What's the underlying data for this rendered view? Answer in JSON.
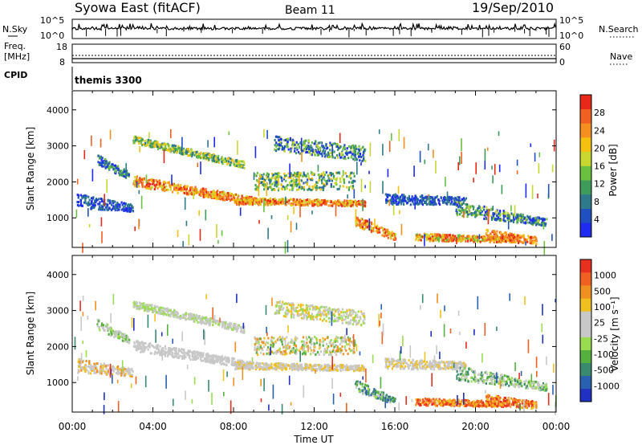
{
  "header": {
    "title": "Syowa East (fitACF)",
    "beam": "Beam 11",
    "date": "19/Sep/2010"
  },
  "top_panels": {
    "nsky_label": "N.Sky",
    "nsky_ticks": [
      "10^5",
      "10^0"
    ],
    "nsearch_label": "N.Search",
    "nsearch_ticks": [
      "10^5",
      "10^0"
    ],
    "freq_label_line1": "Freq.",
    "freq_label_line2": "[MHz]",
    "freq_ticks": [
      "18",
      "8"
    ],
    "nave_label": "Nave",
    "nave_ticks": [
      "60",
      "0"
    ],
    "cpid_label": "CPID",
    "cpid_value": "themis 3300"
  },
  "chart_data": [
    {
      "type": "heatmap",
      "panel": "power",
      "xlabel": "",
      "ylabel": "Slant Range [km]",
      "y_ticks": [
        "1000",
        "2000",
        "3000",
        "4000"
      ],
      "ylim": [
        180,
        4530
      ],
      "xlim": [
        0,
        24
      ],
      "colorbar": {
        "label": "Power [dB]",
        "ticks": [
          "4",
          "8",
          "12",
          "16",
          "20",
          "24",
          "28"
        ],
        "colors": [
          "#1f2bf0",
          "#2050c0",
          "#2e7a8a",
          "#3f9b5a",
          "#6cc040",
          "#c8d830",
          "#f5c010",
          "#f59020",
          "#f06020",
          "#e82818"
        ]
      },
      "bands": [
        {
          "t": [
            3.0,
            8.5
          ],
          "r0": [
            3300,
            2600
          ],
          "r1": [
            3100,
            2400
          ],
          "cls": [
            2,
            6
          ]
        },
        {
          "t": [
            3.0,
            9.0
          ],
          "r0": [
            2200,
            1600
          ],
          "r1": [
            1900,
            1400
          ],
          "cls": [
            5,
            9
          ]
        },
        {
          "t": [
            8.0,
            14.5
          ],
          "r0": [
            1600,
            1500
          ],
          "r1": [
            1400,
            1350
          ],
          "cls": [
            5,
            9
          ]
        },
        {
          "t": [
            0.2,
            3.0
          ],
          "r0": [
            1700,
            1400
          ],
          "r1": [
            1300,
            1200
          ],
          "cls": [
            0,
            2
          ]
        },
        {
          "t": [
            1.2,
            2.8
          ],
          "r0": [
            2800,
            2300
          ],
          "r1": [
            2500,
            2100
          ],
          "cls": [
            0,
            4
          ]
        },
        {
          "t": [
            9.0,
            14.0
          ],
          "r0": [
            2300,
            2300
          ],
          "r1": [
            1800,
            1800
          ],
          "cls": [
            1,
            6
          ]
        },
        {
          "t": [
            10.0,
            14.5
          ],
          "r0": [
            3300,
            3000
          ],
          "r1": [
            2900,
            2600
          ],
          "cls": [
            0,
            5
          ]
        },
        {
          "t": [
            14.0,
            16.0
          ],
          "r0": [
            1100,
            600
          ],
          "r1": [
            800,
            400
          ],
          "cls": [
            5,
            9
          ]
        },
        {
          "t": [
            15.5,
            19.5
          ],
          "r0": [
            1700,
            1600
          ],
          "r1": [
            1400,
            1400
          ],
          "cls": [
            0,
            2
          ]
        },
        {
          "t": [
            17.0,
            21.5
          ],
          "r0": [
            600,
            500
          ],
          "r1": [
            400,
            350
          ],
          "cls": [
            4,
            9
          ]
        },
        {
          "t": [
            19.0,
            23.5
          ],
          "r0": [
            1500,
            1000
          ],
          "r1": [
            1100,
            800
          ],
          "cls": [
            0,
            5
          ]
        },
        {
          "t": [
            20.5,
            23.0
          ],
          "r0": [
            700,
            500
          ],
          "r1": [
            400,
            300
          ],
          "cls": [
            6,
            9
          ]
        }
      ]
    },
    {
      "type": "heatmap",
      "panel": "velocity",
      "xlabel": "Time UT",
      "ylabel": "Slant Range [km]",
      "x_ticks": [
        "00:00",
        "04:00",
        "08:00",
        "12:00",
        "16:00",
        "20:00",
        "00:00"
      ],
      "y_ticks": [
        "1000",
        "2000",
        "3000",
        "4000"
      ],
      "ylim": [
        180,
        4530
      ],
      "xlim": [
        0,
        24
      ],
      "colorbar": {
        "label": "Velocity [m s⁻¹]",
        "ticks": [
          "1000",
          "500",
          "100",
          "25",
          "-25",
          "-100",
          "-500",
          "-1000"
        ],
        "colors": [
          "#2030c0",
          "#2a60b0",
          "#3a8a70",
          "#56b040",
          "#9adc50",
          "#c8c8c8",
          "#c8c8c8",
          "#f0c020",
          "#f09020",
          "#f06020",
          "#e83020"
        ]
      },
      "bands": [
        {
          "t": [
            3.0,
            8.5
          ],
          "r0": [
            3300,
            2600
          ],
          "r1": [
            3100,
            2400
          ],
          "cls": [
            4,
            6
          ]
        },
        {
          "t": [
            3.0,
            9.0
          ],
          "r0": [
            2200,
            1600
          ],
          "r1": [
            1900,
            1400
          ],
          "cls": [
            5,
            6
          ]
        },
        {
          "t": [
            8.0,
            14.5
          ],
          "r0": [
            1600,
            1500
          ],
          "r1": [
            1400,
            1350
          ],
          "cls": [
            5,
            7
          ]
        },
        {
          "t": [
            0.2,
            3.0
          ],
          "r0": [
            1700,
            1400
          ],
          "r1": [
            1300,
            1200
          ],
          "cls": [
            5,
            8
          ]
        },
        {
          "t": [
            1.2,
            2.8
          ],
          "r0": [
            2800,
            2300
          ],
          "r1": [
            2500,
            2100
          ],
          "cls": [
            3,
            6
          ]
        },
        {
          "t": [
            9.0,
            14.0
          ],
          "r0": [
            2300,
            2300
          ],
          "r1": [
            1800,
            1800
          ],
          "cls": [
            3,
            8
          ]
        },
        {
          "t": [
            10.0,
            14.5
          ],
          "r0": [
            3300,
            3000
          ],
          "r1": [
            2900,
            2600
          ],
          "cls": [
            4,
            7
          ]
        },
        {
          "t": [
            14.0,
            16.0
          ],
          "r0": [
            1100,
            600
          ],
          "r1": [
            800,
            400
          ],
          "cls": [
            1,
            5
          ]
        },
        {
          "t": [
            15.5,
            19.5
          ],
          "r0": [
            1700,
            1600
          ],
          "r1": [
            1400,
            1400
          ],
          "cls": [
            5,
            7
          ]
        },
        {
          "t": [
            17.0,
            21.5
          ],
          "r0": [
            600,
            500
          ],
          "r1": [
            400,
            350
          ],
          "cls": [
            7,
            10
          ]
        },
        {
          "t": [
            19.0,
            23.5
          ],
          "r0": [
            1500,
            1000
          ],
          "r1": [
            1100,
            800
          ],
          "cls": [
            2,
            6
          ]
        },
        {
          "t": [
            20.5,
            23.0
          ],
          "r0": [
            700,
            500
          ],
          "r1": [
            400,
            300
          ],
          "cls": [
            7,
            10
          ]
        }
      ]
    }
  ]
}
